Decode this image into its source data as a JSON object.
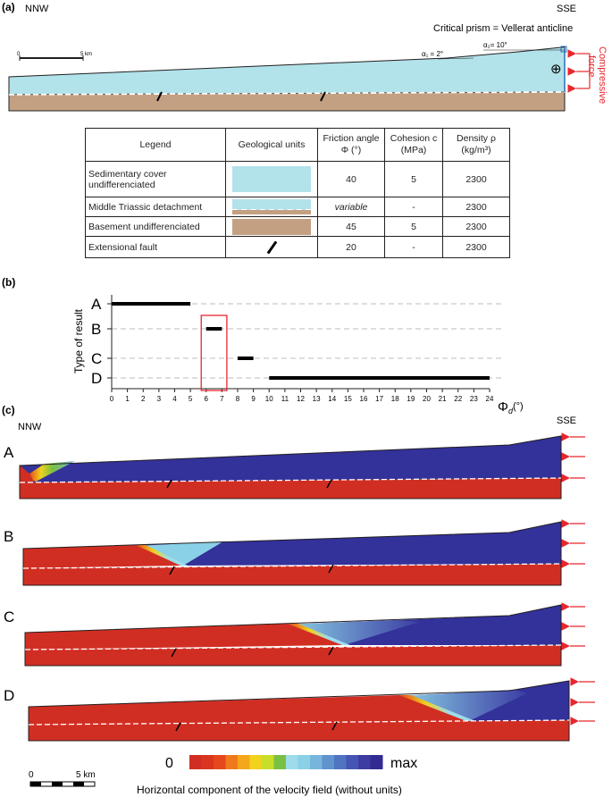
{
  "panel_a": {
    "label": "(a)",
    "left_dir": "NNW",
    "right_dir": "SSE",
    "title": "Critical prism = Vellerat anticline",
    "alpha1": "α₁ = 2°",
    "alpha2": "α₂= 10°",
    "scale_zero": "0",
    "scale_end": "5 km",
    "force_label_1": "Compressive",
    "force_label_2": "force",
    "oplus": "⊕"
  },
  "legend_table": {
    "headers": [
      "Legend",
      "Geological units",
      "Friction angle Φ (°)",
      "Cohesion c (MPa)",
      "Density ρ (kg/m³)"
    ],
    "rows": [
      {
        "name": "Sedimentary cover undifferenciated",
        "friction": "40",
        "cohesion": "5",
        "density": "2300"
      },
      {
        "name": "Middle Triassic detachment",
        "friction": "variable",
        "cohesion": "-",
        "density": "2300"
      },
      {
        "name": "Basement undifferenciated",
        "friction": "45",
        "cohesion": "5",
        "density": "2300"
      },
      {
        "name": "Extensional fault",
        "friction": "20",
        "cohesion": "-",
        "density": "2300"
      }
    ]
  },
  "panel_b": {
    "label": "(b)",
    "ylabel": "Type of result",
    "xlabel_main": "Φ",
    "xlabel_sub": "d",
    "xlabel_unit": "(°)",
    "categories": [
      "A",
      "B",
      "C",
      "D"
    ],
    "ticks": [
      "0",
      "1",
      "2",
      "3",
      "4",
      "5",
      "6",
      "7",
      "8",
      "9",
      "10",
      "11",
      "12",
      "13",
      "14",
      "15",
      "16",
      "17",
      "18",
      "19",
      "20",
      "21",
      "22",
      "23",
      "24"
    ]
  },
  "chart_data": {
    "type": "bar",
    "orientation": "horizontal-range",
    "title": "",
    "xlabel": "Φd (°)",
    "ylabel": "Type of result",
    "xlim": [
      0,
      24
    ],
    "categories": [
      "A",
      "B",
      "C",
      "D"
    ],
    "ranges": [
      {
        "category": "A",
        "from": 0,
        "to": 5
      },
      {
        "category": "B",
        "from": 6,
        "to": 7
      },
      {
        "category": "C",
        "from": 8,
        "to": 9
      },
      {
        "category": "D",
        "from": 10,
        "to": 24
      }
    ],
    "highlight": {
      "from": 5.8,
      "to": 7.2,
      "category": "B",
      "color": "#e8262c"
    },
    "grid": "dashed horizontal"
  },
  "panel_c": {
    "label": "(c)",
    "left_dir": "NNW",
    "right_dir": "SSE",
    "model_labels": [
      "A",
      "B",
      "C",
      "D"
    ],
    "colorbar_min": "0",
    "colorbar_max": "max",
    "colorbar_caption": "Horizontal component of the velocity field (without units)",
    "scale_zero": "0",
    "scale_end": "5 km",
    "colorbar_colors": [
      "#d12e23",
      "#d9351f",
      "#e4481c",
      "#ef7a1b",
      "#f4a71a",
      "#f1d21d",
      "#c9de2a",
      "#79c142",
      "#9edceb",
      "#8ad0e6",
      "#78b5dc",
      "#5f94cf",
      "#4f74c1",
      "#4555b3",
      "#3c3ca3",
      "#332a92"
    ]
  },
  "colors": {
    "cover": "#b2e2ea",
    "basement": "#c4a083",
    "velocity_low": "#d12e23",
    "velocity_high": "#33319a",
    "arrow": "#e8262c"
  }
}
